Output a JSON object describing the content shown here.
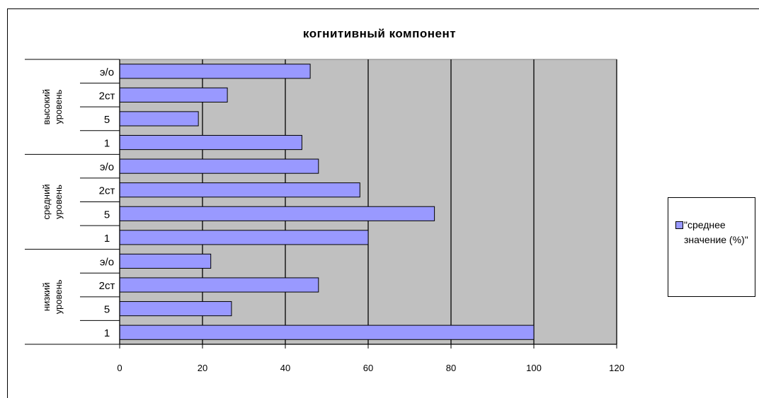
{
  "chart_data": {
    "type": "bar",
    "orientation": "horizontal",
    "title": "когнитивный компонент",
    "xlim": [
      0,
      120
    ],
    "xticks": [
      0,
      20,
      40,
      60,
      80,
      100,
      120
    ],
    "grid": true,
    "legend_position": "right",
    "bar_color": "#9999ff",
    "plot_background": "#c0c0c0",
    "groups": [
      {
        "name": "высокий уровень",
        "categories": [
          "э/о",
          "2ст",
          "5",
          "1"
        ],
        "values": [
          46,
          26,
          19,
          44
        ]
      },
      {
        "name": "средний уровень",
        "categories": [
          "э/о",
          "2ст",
          "5",
          "1"
        ],
        "values": [
          48,
          58,
          76,
          60
        ]
      },
      {
        "name": "низкий уровень",
        "categories": [
          "э/о",
          "2ст",
          "5",
          "1"
        ],
        "values": [
          22,
          48,
          27,
          100
        ]
      }
    ],
    "series": [
      {
        "name": "\"среднее значение (%)\""
      }
    ]
  }
}
